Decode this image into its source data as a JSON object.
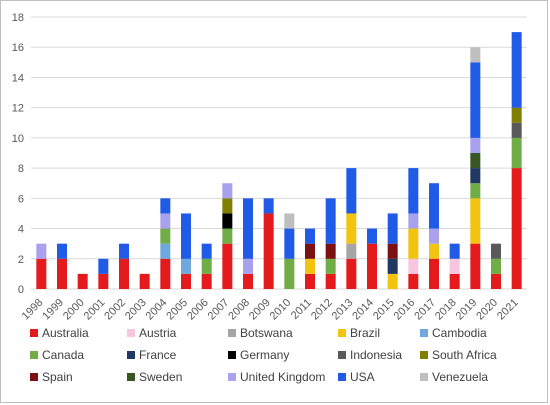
{
  "chart_data": {
    "type": "bar",
    "stacked": true,
    "grid": true,
    "legend_position": "bottom",
    "ylim": [
      0,
      18
    ],
    "yticks": [
      0,
      2,
      4,
      6,
      8,
      10,
      12,
      14,
      16,
      18
    ],
    "categories": [
      "1998",
      "1999",
      "2000",
      "2001",
      "2002",
      "2003",
      "2004",
      "2005",
      "2006",
      "2007",
      "2008",
      "2009",
      "2010",
      "2011",
      "2012",
      "2013",
      "2014",
      "2015",
      "2016",
      "2017",
      "2018",
      "2019",
      "2020",
      "2021"
    ],
    "series": [
      {
        "name": "Australia",
        "color": "#e41a1c",
        "values": [
          2,
          2,
          1,
          1,
          2,
          1,
          2,
          1,
          1,
          3,
          1,
          5,
          0,
          1,
          1,
          2,
          3,
          0,
          1,
          2,
          1,
          3,
          1,
          8
        ]
      },
      {
        "name": "Austria",
        "color": "#f7c6de",
        "values": [
          0,
          0,
          0,
          0,
          0,
          0,
          0,
          0,
          0,
          0,
          0,
          0,
          0,
          0,
          0,
          0,
          0,
          0,
          1,
          0,
          1,
          0,
          0,
          0
        ]
      },
      {
        "name": "Botswana",
        "color": "#a6a6a6",
        "values": [
          0,
          0,
          0,
          0,
          0,
          0,
          0,
          0,
          0,
          0,
          0,
          0,
          0,
          0,
          0,
          1,
          0,
          0,
          0,
          0,
          0,
          0,
          0,
          0
        ]
      },
      {
        "name": "Brazil",
        "color": "#f1c40f",
        "values": [
          0,
          0,
          0,
          0,
          0,
          0,
          0,
          0,
          0,
          0,
          0,
          0,
          0,
          1,
          0,
          2,
          0,
          1,
          2,
          1,
          0,
          3,
          0,
          0
        ]
      },
      {
        "name": "Cambodia",
        "color": "#6fa8dc",
        "values": [
          0,
          0,
          0,
          0,
          0,
          0,
          1,
          1,
          0,
          0,
          0,
          0,
          0,
          0,
          0,
          0,
          0,
          0,
          0,
          0,
          0,
          0,
          0,
          0
        ]
      },
      {
        "name": "Canada",
        "color": "#70ad47",
        "values": [
          0,
          0,
          0,
          0,
          0,
          0,
          1,
          0,
          1,
          1,
          0,
          0,
          2,
          0,
          1,
          0,
          0,
          0,
          0,
          0,
          0,
          1,
          1,
          2
        ]
      },
      {
        "name": "France",
        "color": "#203864",
        "values": [
          0,
          0,
          0,
          0,
          0,
          0,
          0,
          0,
          0,
          0,
          0,
          0,
          0,
          0,
          0,
          0,
          0,
          1,
          0,
          0,
          0,
          1,
          0,
          0
        ]
      },
      {
        "name": "Germany",
        "color": "#000000",
        "values": [
          0,
          0,
          0,
          0,
          0,
          0,
          0,
          0,
          0,
          1,
          0,
          0,
          0,
          0,
          0,
          0,
          0,
          0,
          0,
          0,
          0,
          0,
          0,
          0
        ]
      },
      {
        "name": "Indonesia",
        "color": "#595959",
        "values": [
          0,
          0,
          0,
          0,
          0,
          0,
          0,
          0,
          0,
          0,
          0,
          0,
          0,
          0,
          0,
          0,
          0,
          0,
          0,
          0,
          0,
          0,
          1,
          1
        ]
      },
      {
        "name": "South Africa",
        "color": "#7f7f00",
        "values": [
          0,
          0,
          0,
          0,
          0,
          0,
          0,
          0,
          0,
          1,
          0,
          0,
          0,
          0,
          0,
          0,
          0,
          0,
          0,
          0,
          0,
          0,
          0,
          1
        ]
      },
      {
        "name": "Spain",
        "color": "#7b1113",
        "values": [
          0,
          0,
          0,
          0,
          0,
          0,
          0,
          0,
          0,
          0,
          0,
          0,
          0,
          1,
          1,
          0,
          0,
          1,
          0,
          0,
          0,
          0,
          0,
          0
        ]
      },
      {
        "name": "Sweden",
        "color": "#375623",
        "values": [
          0,
          0,
          0,
          0,
          0,
          0,
          0,
          0,
          0,
          0,
          0,
          0,
          0,
          0,
          0,
          0,
          0,
          0,
          0,
          0,
          0,
          1,
          0,
          0
        ]
      },
      {
        "name": "United Kingdom",
        "color": "#a9a1ee",
        "values": [
          1,
          0,
          0,
          0,
          0,
          0,
          1,
          0,
          0,
          1,
          1,
          0,
          0,
          0,
          0,
          0,
          0,
          0,
          1,
          1,
          0,
          1,
          0,
          0
        ]
      },
      {
        "name": "USA",
        "color": "#1f5be6",
        "values": [
          0,
          1,
          0,
          1,
          1,
          0,
          1,
          3,
          1,
          0,
          4,
          1,
          2,
          1,
          3,
          3,
          1,
          2,
          3,
          3,
          1,
          5,
          0,
          5
        ]
      },
      {
        "name": "Venezuela",
        "color": "#bfbfbf",
        "values": [
          0,
          0,
          0,
          0,
          0,
          0,
          0,
          0,
          0,
          0,
          0,
          0,
          1,
          0,
          0,
          0,
          0,
          0,
          0,
          0,
          0,
          1,
          0,
          0
        ]
      }
    ]
  }
}
